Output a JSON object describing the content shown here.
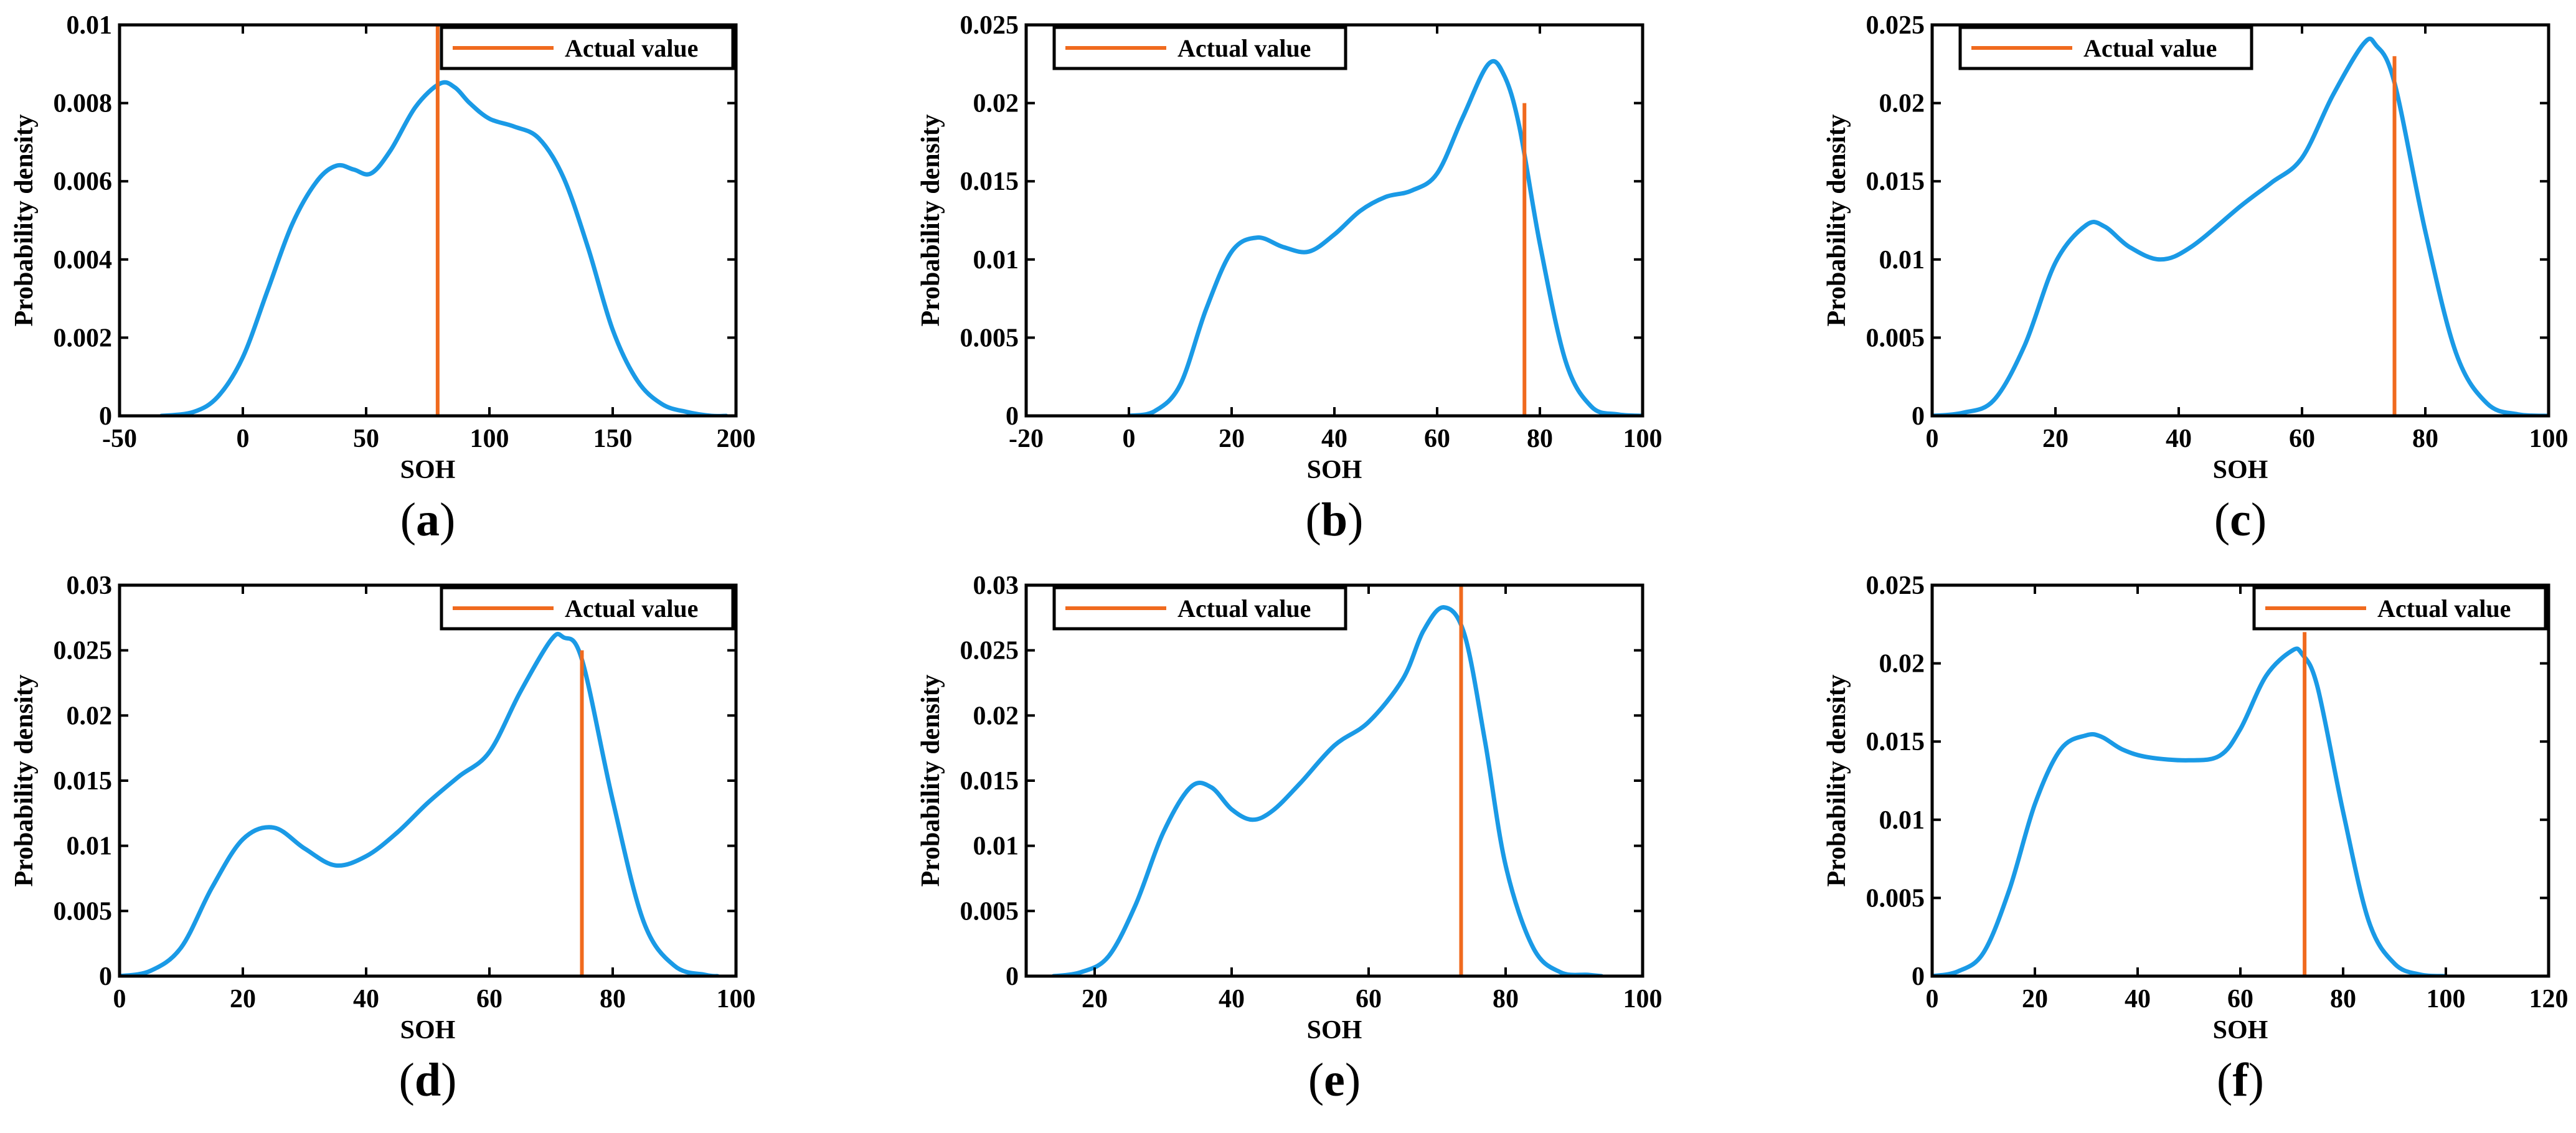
{
  "figure": {
    "panel_count": 6
  },
  "chart_data": [
    {
      "panel": "a",
      "caption": "a",
      "type": "line",
      "xlabel": "SOH",
      "ylabel": "Probability density",
      "xlim": [
        -50,
        200
      ],
      "ylim": [
        0,
        0.01
      ],
      "xticks": [
        -50,
        0,
        50,
        100,
        150,
        200
      ],
      "yticks": [
        0,
        0.002,
        0.004,
        0.006,
        0.008,
        0.01
      ],
      "legend": {
        "label": "Actual value",
        "position": "top-right"
      },
      "actual_value": {
        "x": 79,
        "ymax": 0.01
      },
      "series": [
        {
          "name": "Density",
          "x": [
            -33,
            -20,
            -10,
            0,
            10,
            20,
            30,
            38,
            45,
            52,
            60,
            70,
            80,
            86,
            92,
            100,
            110,
            120,
            130,
            140,
            150,
            160,
            170,
            180,
            190,
            196
          ],
          "y": [
            0,
            0.0001,
            0.0005,
            0.0015,
            0.0032,
            0.0049,
            0.006,
            0.0064,
            0.0063,
            0.0062,
            0.0068,
            0.0079,
            0.0085,
            0.0084,
            0.008,
            0.0076,
            0.0074,
            0.0071,
            0.0061,
            0.0043,
            0.0022,
            0.0009,
            0.0003,
            0.0001,
            0,
            0
          ]
        }
      ]
    },
    {
      "panel": "b",
      "caption": "b",
      "type": "line",
      "xlabel": "SOH",
      "ylabel": "Probability density",
      "xlim": [
        -20,
        100
      ],
      "ylim": [
        0,
        0.025
      ],
      "xticks": [
        -20,
        0,
        20,
        40,
        60,
        80,
        100
      ],
      "yticks": [
        0,
        0.005,
        0.01,
        0.015,
        0.02,
        0.025
      ],
      "legend": {
        "label": "Actual value",
        "position": "top-left"
      },
      "actual_value": {
        "x": 77,
        "ymax": 0.02
      },
      "series": [
        {
          "name": "Density",
          "x": [
            0,
            5,
            10,
            15,
            20,
            25,
            30,
            35,
            40,
            45,
            50,
            55,
            60,
            65,
            70,
            73,
            76,
            80,
            85,
            90,
            95,
            100
          ],
          "y": [
            0,
            0.0003,
            0.002,
            0.0068,
            0.0105,
            0.0114,
            0.0108,
            0.0105,
            0.0116,
            0.0131,
            0.014,
            0.0144,
            0.0155,
            0.0191,
            0.0225,
            0.0218,
            0.0185,
            0.011,
            0.0035,
            0.0006,
            0.0001,
            0
          ]
        }
      ]
    },
    {
      "panel": "c",
      "caption": "c",
      "type": "line",
      "xlabel": "SOH",
      "ylabel": "Probability density",
      "xlim": [
        0,
        100
      ],
      "ylim": [
        0,
        0.025
      ],
      "xticks": [
        0,
        20,
        40,
        60,
        80,
        100
      ],
      "yticks": [
        0,
        0.005,
        0.01,
        0.015,
        0.02,
        0.025
      ],
      "legend": {
        "label": "Actual value",
        "position": "top-left"
      },
      "actual_value": {
        "x": 75,
        "ymax": 0.023
      },
      "series": [
        {
          "name": "Density",
          "x": [
            0,
            5,
            10,
            15,
            20,
            25,
            28,
            32,
            37,
            42,
            50,
            55,
            60,
            65,
            70,
            72,
            75,
            80,
            85,
            90,
            95,
            100
          ],
          "y": [
            0,
            0.0002,
            0.001,
            0.0045,
            0.0098,
            0.0122,
            0.0121,
            0.0108,
            0.01,
            0.0108,
            0.0134,
            0.0149,
            0.0165,
            0.0205,
            0.0238,
            0.0237,
            0.0213,
            0.0118,
            0.004,
            0.0008,
            0.0001,
            0
          ]
        }
      ]
    },
    {
      "panel": "d",
      "caption": "d",
      "type": "line",
      "xlabel": "SOH",
      "ylabel": "Probability density",
      "xlim": [
        0,
        100
      ],
      "ylim": [
        0,
        0.03
      ],
      "xticks": [
        0,
        20,
        40,
        60,
        80,
        100
      ],
      "yticks": [
        0,
        0.005,
        0.01,
        0.015,
        0.02,
        0.025,
        0.03
      ],
      "legend": {
        "label": "Actual value",
        "position": "top-right"
      },
      "actual_value": {
        "x": 75,
        "ymax": 0.025
      },
      "series": [
        {
          "name": "Density",
          "x": [
            0,
            5,
            10,
            15,
            20,
            25,
            30,
            35,
            40,
            45,
            50,
            55,
            60,
            65,
            70,
            72,
            75,
            80,
            85,
            90,
            95,
            97
          ],
          "y": [
            0,
            0.0004,
            0.0022,
            0.0068,
            0.0105,
            0.0114,
            0.0098,
            0.0085,
            0.0092,
            0.011,
            0.0133,
            0.0153,
            0.0172,
            0.0218,
            0.0258,
            0.026,
            0.0243,
            0.0135,
            0.0042,
            0.0008,
            0.0001,
            0
          ]
        }
      ]
    },
    {
      "panel": "e",
      "caption": "e",
      "type": "line",
      "xlabel": "SOH",
      "ylabel": "Probability density",
      "xlim": [
        10,
        100
      ],
      "ylim": [
        0,
        0.03
      ],
      "xticks": [
        20,
        40,
        60,
        80,
        100
      ],
      "yticks": [
        0,
        0.005,
        0.01,
        0.015,
        0.02,
        0.025,
        0.03
      ],
      "legend": {
        "label": "Actual value",
        "position": "top-left"
      },
      "actual_value": {
        "x": 73.5,
        "ymax": 0.03
      },
      "series": [
        {
          "name": "Density",
          "x": [
            14,
            18,
            22,
            26,
            30,
            34,
            37,
            40,
            43,
            46,
            50,
            55,
            60,
            65,
            68,
            71,
            74,
            77,
            80,
            84,
            88,
            92,
            94
          ],
          "y": [
            0,
            0.0003,
            0.0015,
            0.0055,
            0.011,
            0.0145,
            0.0145,
            0.0128,
            0.012,
            0.0127,
            0.0148,
            0.0177,
            0.0195,
            0.0228,
            0.0265,
            0.0283,
            0.0262,
            0.018,
            0.0085,
            0.0022,
            0.0003,
            0.0001,
            0
          ]
        }
      ]
    },
    {
      "panel": "f",
      "caption": "f",
      "type": "line",
      "xlabel": "SOH",
      "ylabel": "Probability density",
      "xlim": [
        0,
        120
      ],
      "ylim": [
        0,
        0.025
      ],
      "xticks": [
        0,
        20,
        40,
        60,
        80,
        100,
        120
      ],
      "yticks": [
        0,
        0.005,
        0.01,
        0.015,
        0.02,
        0.025
      ],
      "legend": {
        "label": "Actual value",
        "position": "top-right"
      },
      "actual_value": {
        "x": 72.5,
        "ymax": 0.022
      },
      "series": [
        {
          "name": "Density",
          "x": [
            0,
            5,
            10,
            15,
            20,
            25,
            30,
            33,
            37,
            42,
            50,
            56,
            60,
            65,
            70,
            72,
            75,
            80,
            85,
            90,
            95,
            100
          ],
          "y": [
            0,
            0.0003,
            0.0015,
            0.0055,
            0.011,
            0.0145,
            0.0154,
            0.0153,
            0.0145,
            0.014,
            0.0138,
            0.0141,
            0.0158,
            0.0192,
            0.0208,
            0.0206,
            0.0185,
            0.0105,
            0.0035,
            0.0008,
            0.0001,
            0
          ]
        }
      ]
    }
  ]
}
